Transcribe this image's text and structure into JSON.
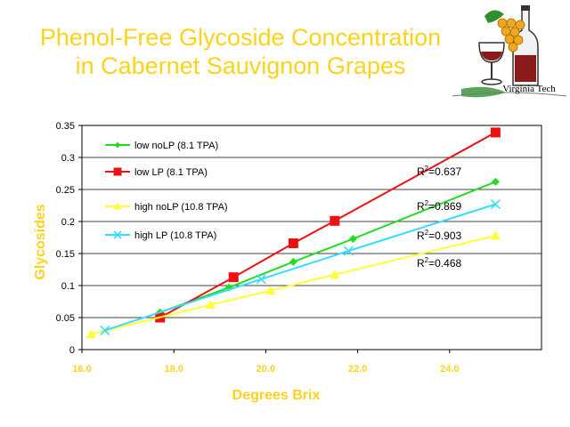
{
  "title_lines": [
    "Phenol-Free Glycoside Concentration",
    "in Cabernet Sauvignon Grapes"
  ],
  "logo": {
    "caption": "Virginia Tech",
    "icon": "grape-wine-logo-icon"
  },
  "chart_data": {
    "type": "line",
    "title": "Phenol-Free Glycoside Concentration in Cabernet Sauvignon Grapes",
    "xlabel": "Degrees Brix",
    "ylabel": "Glycosides",
    "xlim": [
      16.0,
      26.0
    ],
    "ylim": [
      0,
      0.35
    ],
    "x_ticks": [
      16.0,
      18.0,
      20.0,
      22.0,
      24.0
    ],
    "x_tick_labels": [
      "16.0",
      "18.0",
      "20.0",
      "22.0",
      "24.0"
    ],
    "y_ticks": [
      0,
      0.05,
      0.1,
      0.15,
      0.2,
      0.25,
      0.3,
      0.35
    ],
    "y_tick_labels": [
      "0",
      "0.05",
      "0.1",
      "0.15",
      "0.2",
      "0.25",
      "0.3",
      "0.35"
    ],
    "grid": "horizontal",
    "legend_position": "top-left",
    "series": [
      {
        "name": "low noLP (8.1 TPA)",
        "color": "#22dd22",
        "marker": "diamond",
        "points": [
          [
            17.7,
            0.058
          ],
          [
            19.2,
            0.097
          ],
          [
            20.6,
            0.137
          ],
          [
            21.9,
            0.173
          ],
          [
            25.0,
            0.262
          ]
        ]
      },
      {
        "name": "low LP (8.1 TPA)",
        "color": "#ee1111",
        "marker": "square",
        "points": [
          [
            17.7,
            0.05
          ],
          [
            19.3,
            0.113
          ],
          [
            20.6,
            0.166
          ],
          [
            21.5,
            0.201
          ],
          [
            25.0,
            0.339
          ]
        ]
      },
      {
        "name": "high noLP (10.8 TPA)",
        "color": "#ffff33",
        "marker": "triangle",
        "points": [
          [
            16.2,
            0.024
          ],
          [
            18.8,
            0.07
          ],
          [
            20.1,
            0.092
          ],
          [
            21.5,
            0.117
          ],
          [
            25.0,
            0.178
          ]
        ]
      },
      {
        "name": "high LP (10.8 TPA)",
        "color": "#33ddff",
        "marker": "x",
        "points": [
          [
            16.5,
            0.03
          ],
          [
            19.9,
            0.11
          ],
          [
            21.8,
            0.154
          ],
          [
            25.0,
            0.227
          ]
        ]
      }
    ],
    "annotations": [
      "R2=0.637",
      "R2=0.869",
      "R2=0.903",
      "R2=0.468"
    ]
  }
}
